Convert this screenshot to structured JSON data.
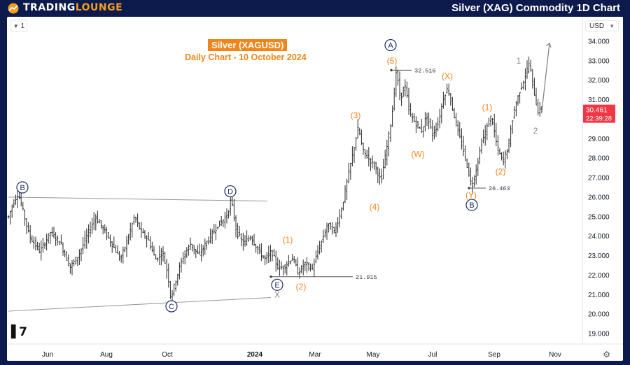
{
  "header": {
    "brand_part1": "TRADING",
    "brand_part2": "LOUNGE",
    "page_title": "Silver (XAG) Commodity 1D Chart"
  },
  "toolbar": {
    "interval": "1",
    "currency": "USD"
  },
  "chart_data": {
    "type": "candlestick",
    "title": "Silver (XAGUSD)",
    "subtitle": "Daily Chart - 10 October 2024",
    "x_ticks": [
      "Jun",
      "Aug",
      "Oct",
      "2024",
      "Mar",
      "May",
      "Jul",
      "Sep",
      "Nov"
    ],
    "y_ticks": [
      "19.000",
      "20.000",
      "21.000",
      "22.000",
      "23.000",
      "24.000",
      "25.000",
      "26.000",
      "27.000",
      "28.000",
      "29.000",
      "30.000",
      "31.000",
      "32.000",
      "33.000",
      "34.000"
    ],
    "ylim": [
      18.5,
      34.5
    ],
    "current_price": {
      "value": "30.461",
      "countdown": "22:39:28",
      "color": "#f23645"
    },
    "price_path": [
      [
        0,
        25.0
      ],
      [
        8,
        25.8
      ],
      [
        14,
        26.2
      ],
      [
        20,
        25.4
      ],
      [
        30,
        24.0
      ],
      [
        45,
        23.2
      ],
      [
        60,
        24.2
      ],
      [
        75,
        23.6
      ],
      [
        88,
        22.4
      ],
      [
        100,
        23.0
      ],
      [
        112,
        24.0
      ],
      [
        124,
        25.0
      ],
      [
        135,
        24.4
      ],
      [
        148,
        23.6
      ],
      [
        160,
        22.8
      ],
      [
        170,
        23.8
      ],
      [
        180,
        25.0
      ],
      [
        190,
        24.2
      ],
      [
        200,
        23.8
      ],
      [
        210,
        22.8
      ],
      [
        220,
        23.2
      ],
      [
        228,
        22.0
      ],
      [
        232,
        20.8
      ],
      [
        238,
        21.6
      ],
      [
        248,
        22.8
      ],
      [
        260,
        23.6
      ],
      [
        272,
        23.0
      ],
      [
        285,
        23.8
      ],
      [
        300,
        24.6
      ],
      [
        312,
        25.0
      ],
      [
        318,
        25.9
      ],
      [
        326,
        24.2
      ],
      [
        336,
        23.6
      ],
      [
        346,
        24.0
      ],
      [
        355,
        23.4
      ],
      [
        366,
        22.8
      ],
      [
        376,
        23.2
      ],
      [
        386,
        22.3
      ],
      [
        396,
        22.5
      ],
      [
        406,
        22.9
      ],
      [
        414,
        22.1
      ],
      [
        424,
        22.6
      ],
      [
        434,
        22.3
      ],
      [
        444,
        23.4
      ],
      [
        456,
        24.6
      ],
      [
        466,
        24.2
      ],
      [
        476,
        25.4
      ],
      [
        486,
        27.2
      ],
      [
        494,
        28.6
      ],
      [
        500,
        29.6
      ],
      [
        506,
        28.4
      ],
      [
        514,
        28.0
      ],
      [
        524,
        27.6
      ],
      [
        532,
        26.8
      ],
      [
        540,
        28.4
      ],
      [
        548,
        30.2
      ],
      [
        554,
        32.5
      ],
      [
        560,
        31.0
      ],
      [
        566,
        31.8
      ],
      [
        574,
        30.2
      ],
      [
        582,
        29.8
      ],
      [
        590,
        29.4
      ],
      [
        598,
        30.2
      ],
      [
        606,
        29.2
      ],
      [
        614,
        29.8
      ],
      [
        622,
        31.2
      ],
      [
        628,
        31.6
      ],
      [
        634,
        30.6
      ],
      [
        642,
        29.4
      ],
      [
        650,
        28.4
      ],
      [
        658,
        27.2
      ],
      [
        662,
        26.5
      ],
      [
        668,
        27.4
      ],
      [
        676,
        28.8
      ],
      [
        684,
        29.6
      ],
      [
        690,
        30.2
      ],
      [
        698,
        28.6
      ],
      [
        706,
        27.8
      ],
      [
        714,
        28.6
      ],
      [
        722,
        30.4
      ],
      [
        730,
        31.4
      ],
      [
        738,
        32.2
      ],
      [
        744,
        32.9
      ],
      [
        750,
        31.6
      ],
      [
        756,
        30.4
      ],
      [
        762,
        30.5
      ]
    ],
    "wave_labels": [
      {
        "text": "B",
        "price": 26.5,
        "style": "circle-navy"
      },
      {
        "text": "D",
        "price": 26.3,
        "style": "circle-navy"
      },
      {
        "text": "C",
        "price": 20.4,
        "style": "circle-navy"
      },
      {
        "text": "E",
        "price": 21.5,
        "style": "circle-navy"
      },
      {
        "text": "X",
        "price": 21.0,
        "style": "gray"
      },
      {
        "text": "A",
        "price": 33.8,
        "style": "circle-navy"
      },
      {
        "text": "B",
        "price": 25.6,
        "style": "circle-navy"
      },
      {
        "text": "(1)",
        "price": 23.8,
        "style": "orange"
      },
      {
        "text": "(2)",
        "price": 21.4,
        "style": "orange"
      },
      {
        "text": "(3)",
        "price": 30.2,
        "style": "orange"
      },
      {
        "text": "(4)",
        "price": 25.5,
        "style": "orange"
      },
      {
        "text": "(5)",
        "price": 33.0,
        "style": "orange"
      },
      {
        "text": "(W)",
        "price": 28.2,
        "style": "orange"
      },
      {
        "text": "(X)",
        "price": 32.2,
        "style": "orange"
      },
      {
        "text": "(Y)",
        "price": 26.1,
        "style": "orange"
      },
      {
        "text": "(1)",
        "price": 30.6,
        "style": "orange"
      },
      {
        "text": "(2)",
        "price": 27.3,
        "style": "orange"
      },
      {
        "text": "1",
        "price": 33.0,
        "style": "gray"
      },
      {
        "text": "2",
        "price": 29.4,
        "style": "gray"
      }
    ],
    "price_callouts": [
      {
        "text": "32.516",
        "price": 32.516
      },
      {
        "text": "26.463",
        "price": 26.463
      },
      {
        "text": "21.915",
        "price": 21.915
      }
    ],
    "trendlines": [
      {
        "from": [
          0,
          26.0
        ],
        "to": [
          370,
          25.8
        ]
      },
      {
        "from": [
          0,
          20.15
        ],
        "to": [
          375,
          20.85
        ]
      }
    ],
    "projection_arrow": {
      "from": [
        762,
        30.4
      ],
      "to": [
        773,
        33.9
      ]
    },
    "colors": {
      "label_orange": "#f08519",
      "label_navy": "#1a2d5c",
      "label_gray": "#888888",
      "candle": "#2a2a2a"
    }
  }
}
